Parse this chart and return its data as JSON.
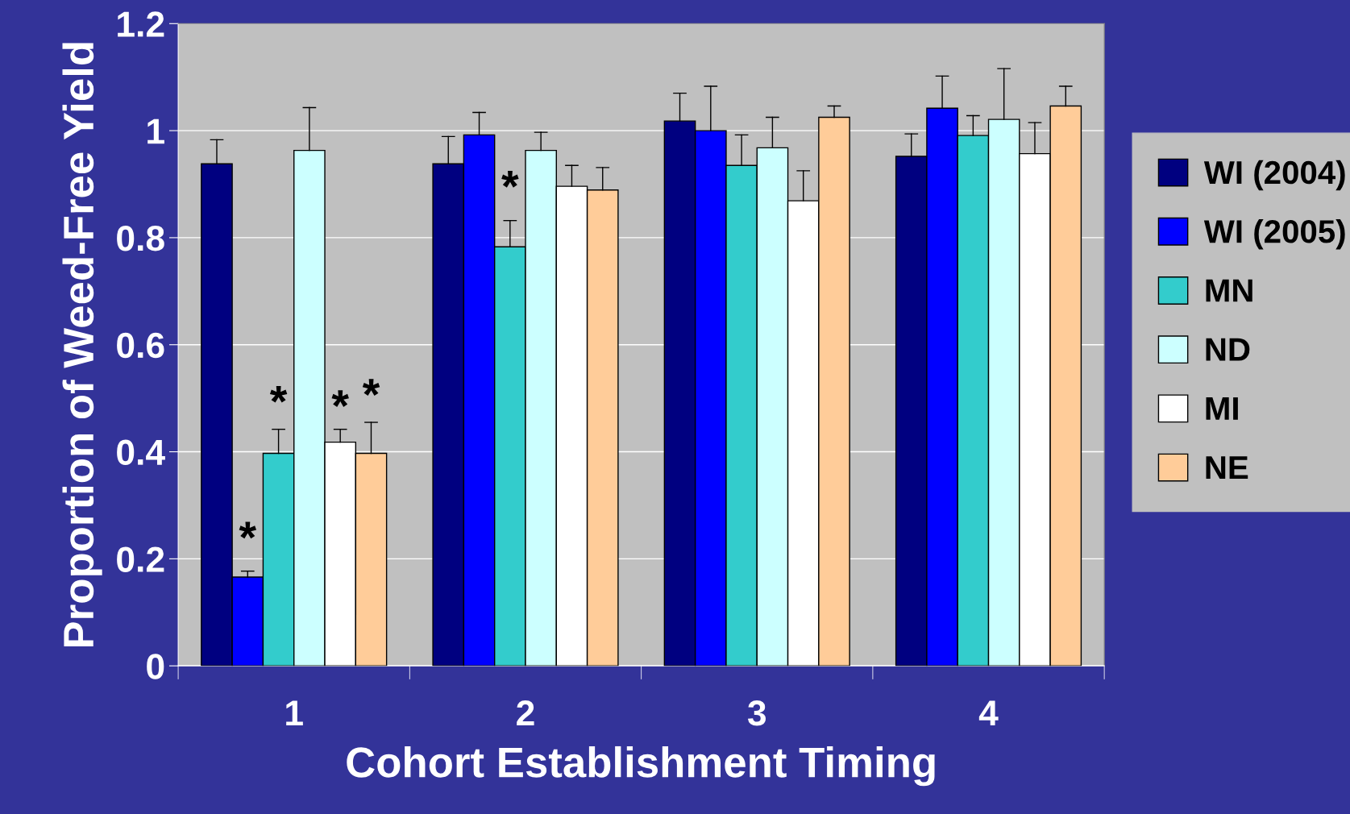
{
  "chart_data": {
    "type": "bar",
    "xlabel": "Cohort Establishment Timing",
    "ylabel": "Proportion of Weed-Free Yield",
    "categories": [
      "1",
      "2",
      "3",
      "4"
    ],
    "series": [
      {
        "name": "WI (2004)",
        "color": "#000080",
        "values": [
          0.938,
          0.938,
          1.018,
          0.952
        ],
        "errors": [
          [
            0.938,
            0.983
          ],
          [
            0.938,
            0.989
          ],
          [
            1.018,
            1.07
          ],
          [
            0.952,
            0.994
          ]
        ]
      },
      {
        "name": "WI (2005)",
        "color": "#0000ff",
        "values": [
          0.166,
          0.992,
          1.0,
          1.042
        ],
        "errors": [
          [
            0.166,
            0.177
          ],
          [
            0.992,
            1.034
          ],
          [
            1.0,
            1.083
          ],
          [
            1.042,
            1.102
          ]
        ]
      },
      {
        "name": "MN",
        "color": "#33cccc",
        "values": [
          0.397,
          0.783,
          0.935,
          0.991
        ],
        "errors": [
          [
            0.397,
            0.442
          ],
          [
            0.783,
            0.832
          ],
          [
            0.935,
            0.992
          ],
          [
            0.991,
            1.028
          ]
        ]
      },
      {
        "name": "ND",
        "color": "#ccffff",
        "values": [
          0.963,
          0.963,
          0.968,
          1.021
        ],
        "errors": [
          [
            0.963,
            1.043
          ],
          [
            0.963,
            0.997
          ],
          [
            0.968,
            1.025
          ],
          [
            1.021,
            1.116
          ]
        ]
      },
      {
        "name": "MI",
        "color": "#ffffff",
        "values": [
          0.418,
          0.896,
          0.869,
          0.957
        ],
        "errors": [
          [
            0.418,
            0.442
          ],
          [
            0.896,
            0.935
          ],
          [
            0.869,
            0.925
          ],
          [
            0.957,
            1.015
          ]
        ]
      },
      {
        "name": "NE",
        "color": "#ffcc99",
        "values": [
          0.397,
          0.889,
          1.025,
          1.046
        ],
        "errors": [
          [
            0.397,
            0.455
          ],
          [
            0.889,
            0.931
          ],
          [
            1.025,
            1.046
          ],
          [
            1.046,
            1.083
          ]
        ]
      }
    ],
    "annotations": [
      {
        "text": "*",
        "x": "1",
        "y": 0.233
      },
      {
        "text": "*",
        "x": "1",
        "y": 0.487
      },
      {
        "text": "*",
        "x": "1",
        "y": 0.479
      },
      {
        "text": "*",
        "x": "1",
        "y": 0.5
      },
      {
        "text": "*",
        "x": "2",
        "y": 0.889
      }
    ],
    "ylim": [
      0,
      1.2
    ],
    "yticks": [
      0,
      0.2,
      0.4,
      0.6,
      0.8,
      1,
      1.2
    ],
    "grid": "y",
    "legend": "right"
  }
}
